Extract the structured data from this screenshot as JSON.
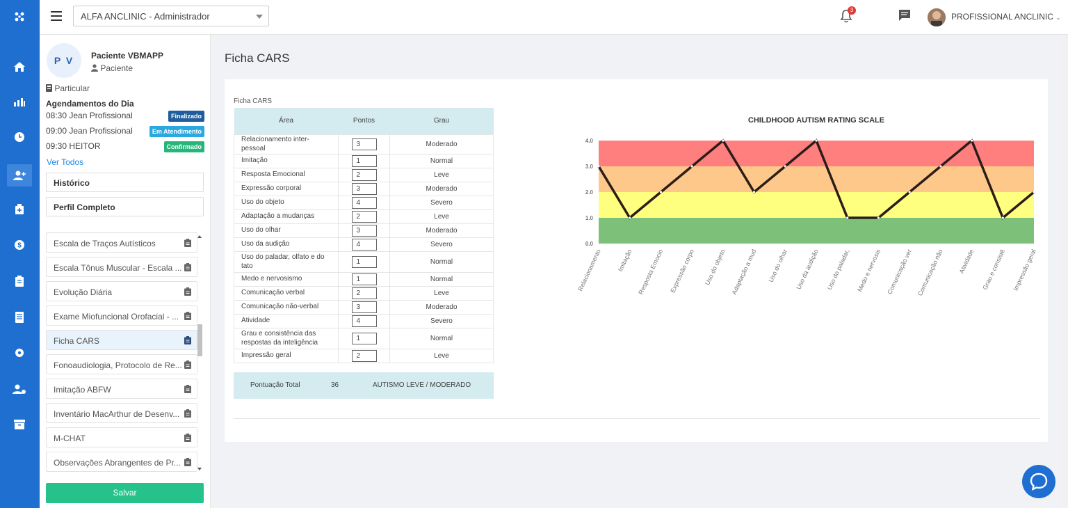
{
  "topbar": {
    "clinic_selected": "ALFA ANCLINIC - Administrador",
    "notification_count": "3",
    "user_name": "PROFISSIONAL ANCLINIC"
  },
  "patient": {
    "initials": "P V",
    "name": "Paciente VBMAPP",
    "role": "Paciente",
    "plan": "Particular"
  },
  "appointments": {
    "title": "Agendamentos do Dia",
    "items": [
      {
        "text": "08:30 Jean Profissional",
        "status": "Finalizado",
        "color": "#1f5e9c"
      },
      {
        "text": "09:00 Jean Profissional",
        "status": "Em Atendimento",
        "color": "#29a9e0"
      },
      {
        "text": "09:30 HEITOR",
        "status": "Confirmado",
        "color": "#26b67a"
      }
    ],
    "see_all": "Ver Todos"
  },
  "side_buttons": {
    "history": "Histórico",
    "full_profile": "Perfil Completo"
  },
  "forms": [
    "Escala de Traços Autísticos",
    "Escala Tônus Muscular - Escala ...",
    "Evolução Diária",
    "Exame Miofuncional Orofacial - ...",
    "Ficha CARS",
    "Fonoaudiologia, Protocolo de Re...",
    "Imitação ABFW",
    "Inventário MacArthur de Desenv...",
    "M-CHAT",
    "Observações Abrangentes de Pr..."
  ],
  "save_label": "Salvar",
  "page_title": "Ficha CARS",
  "card_label": "Ficha CARS",
  "table": {
    "headers": [
      "Área",
      "Pontos",
      "Grau"
    ],
    "rows": [
      {
        "area": "Relacionamento inter-pessoal",
        "pts": "3",
        "grau": "Moderado"
      },
      {
        "area": "Imitação",
        "pts": "1",
        "grau": "Normal"
      },
      {
        "area": "Resposta Emocional",
        "pts": "2",
        "grau": "Leve"
      },
      {
        "area": "Expressão corporal",
        "pts": "3",
        "grau": "Moderado"
      },
      {
        "area": "Uso do objeto",
        "pts": "4",
        "grau": "Severo"
      },
      {
        "area": "Adaptação a mudanças",
        "pts": "2",
        "grau": "Leve"
      },
      {
        "area": "Uso do olhar",
        "pts": "3",
        "grau": "Moderado"
      },
      {
        "area": "Uso da audição",
        "pts": "4",
        "grau": "Severo"
      },
      {
        "area": "Uso do paladar, olfato e do tato",
        "pts": "1",
        "grau": "Normal"
      },
      {
        "area": "Medo e nervosismo",
        "pts": "1",
        "grau": "Normal"
      },
      {
        "area": "Comunicação verbal",
        "pts": "2",
        "grau": "Leve"
      },
      {
        "area": "Comunicação não-verbal",
        "pts": "3",
        "grau": "Moderado"
      },
      {
        "area": "Atividade",
        "pts": "4",
        "grau": "Severo"
      },
      {
        "area": "Grau e consistência das respostas da inteligência",
        "pts": "1",
        "grau": "Normal"
      },
      {
        "area": "Impressão geral",
        "pts": "2",
        "grau": "Leve"
      }
    ],
    "total_label": "Pontuação Total",
    "total_value": "36",
    "total_result": "AUTISMO LEVE / MODERADO"
  },
  "chart_data": {
    "type": "line",
    "title": "CHILDHOOD AUTISM RATING SCALE",
    "categories": [
      "Relacionamento",
      "Imitação",
      "Resposta Emocio",
      "Expressão corpo",
      "Uso do objeto",
      "Adaptação a mud",
      "Uso do olhar",
      "Uso da audição",
      "Uso do paladar,",
      "Medo e nervosis",
      "Comunicação ver",
      "Comunicação não",
      "Atividade",
      "Grau e consistê",
      "Impressão geral"
    ],
    "values": [
      3,
      1,
      2,
      3,
      4,
      2,
      3,
      4,
      1,
      1,
      2,
      3,
      4,
      1,
      2
    ],
    "y_ticks": [
      "0.0",
      "1.0",
      "2.0",
      "3.0",
      "4.0"
    ],
    "ylim": [
      0,
      4
    ],
    "bands": [
      {
        "from": 0,
        "to": 1,
        "color": "#7dc07a"
      },
      {
        "from": 1,
        "to": 2,
        "color": "#ffff7f"
      },
      {
        "from": 2,
        "to": 3,
        "color": "#fec88a"
      },
      {
        "from": 3,
        "to": 4,
        "color": "#ff7e7e"
      }
    ],
    "line_color": "#2b1d1a"
  }
}
